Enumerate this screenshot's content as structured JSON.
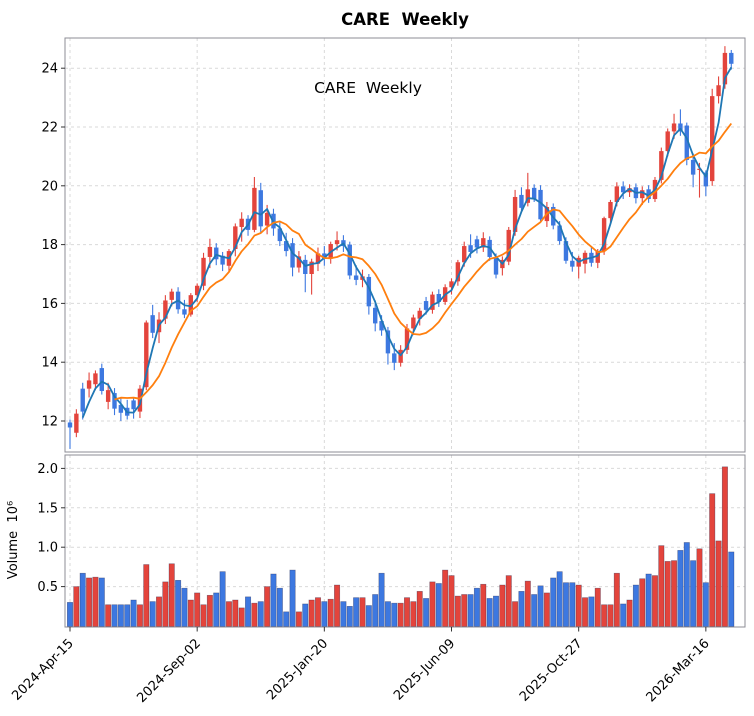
{
  "title": "CARE  Weekly",
  "annotation": "CARE  Weekly",
  "colors": {
    "up": "#e3443c",
    "down": "#3d78e0",
    "ma_fast": "#1f77b4",
    "ma_slow": "#ff7f0e",
    "grid": "#d9d9d9",
    "spine": "#8c8c96",
    "text": "#000000",
    "background": "#ffffff"
  },
  "price_axis": {
    "tick_labels": [
      "12",
      "14",
      "16",
      "18",
      "20",
      "22",
      "24"
    ],
    "tick_values": [
      12,
      14,
      16,
      18,
      20,
      22,
      24
    ],
    "ylim": [
      10.95,
      25.05
    ]
  },
  "volume_axis": {
    "label": "Volume  10⁶",
    "tick_labels": [
      "0.5",
      "1.0",
      "1.5",
      "2.0"
    ],
    "tick_values": [
      0.5,
      1.0,
      1.5,
      2.0
    ],
    "ylim": [
      0,
      2.17
    ]
  },
  "x_axis": {
    "tick_indices": [
      0,
      20,
      40,
      60,
      80,
      100
    ],
    "tick_labels": [
      "2024-Apr-15",
      "2024-Sep-02",
      "2025-Jan-20",
      "2025-Jun-09",
      "2025-Oct-27",
      "2026-Mar-16"
    ]
  },
  "chart_data": {
    "type": "candlestick",
    "panels": [
      "price",
      "volume"
    ],
    "ma_windows": {
      "fast": 3,
      "slow": 8
    },
    "volume_unit": "millions",
    "columns": [
      "date",
      "open",
      "high",
      "low",
      "close",
      "volume_millions"
    ],
    "rows": [
      [
        "2024-04-15",
        11.95,
        12.05,
        11.05,
        11.78,
        0.3
      ],
      [
        "2024-04-22",
        11.6,
        12.4,
        11.45,
        12.25,
        0.5
      ],
      [
        "2024-04-29",
        13.1,
        13.3,
        12.05,
        12.32,
        0.67
      ],
      [
        "2024-05-06",
        13.1,
        13.65,
        12.8,
        13.38,
        0.61
      ],
      [
        "2024-05-13",
        13.25,
        13.72,
        13.05,
        13.62,
        0.62
      ],
      [
        "2024-05-20",
        13.8,
        13.95,
        12.9,
        13.02,
        0.61
      ],
      [
        "2024-05-27",
        12.65,
        13.3,
        12.4,
        13.05,
        0.27
      ],
      [
        "2024-06-03",
        12.95,
        13.12,
        12.2,
        12.42,
        0.27
      ],
      [
        "2024-06-10",
        12.55,
        12.8,
        12.0,
        12.28,
        0.27
      ],
      [
        "2024-06-17",
        12.45,
        12.72,
        12.05,
        12.18,
        0.27
      ],
      [
        "2024-06-24",
        12.7,
        12.78,
        12.08,
        12.4,
        0.33
      ],
      [
        "2024-07-01",
        12.32,
        13.22,
        12.1,
        13.1,
        0.27
      ],
      [
        "2024-07-08",
        13.15,
        15.42,
        13.05,
        15.35,
        0.78
      ],
      [
        "2024-07-15",
        15.6,
        15.95,
        14.82,
        15.0,
        0.31
      ],
      [
        "2024-07-22",
        15.02,
        15.7,
        14.65,
        15.45,
        0.37
      ],
      [
        "2024-07-29",
        15.48,
        16.28,
        15.3,
        16.1,
        0.56
      ],
      [
        "2024-08-05",
        16.12,
        16.5,
        15.9,
        16.4,
        0.79
      ],
      [
        "2024-08-12",
        16.4,
        16.55,
        15.65,
        15.8,
        0.58
      ],
      [
        "2024-08-19",
        15.8,
        16.12,
        15.5,
        15.62,
        0.48
      ],
      [
        "2024-08-26",
        15.62,
        16.35,
        15.55,
        16.28,
        0.33
      ],
      [
        "2024-09-02",
        16.28,
        16.68,
        16.05,
        16.6,
        0.42
      ],
      [
        "2024-09-09",
        16.6,
        17.72,
        16.45,
        17.55,
        0.27
      ],
      [
        "2024-09-16",
        17.58,
        18.2,
        17.2,
        17.92,
        0.39
      ],
      [
        "2024-09-23",
        17.9,
        18.05,
        17.3,
        17.5,
        0.42
      ],
      [
        "2024-09-30",
        17.62,
        17.75,
        17.1,
        17.32,
        0.69
      ],
      [
        "2024-10-07",
        17.28,
        17.85,
        17.05,
        17.78,
        0.31
      ],
      [
        "2024-10-14",
        17.85,
        18.72,
        17.6,
        18.62,
        0.33
      ],
      [
        "2024-10-21",
        18.6,
        19.1,
        18.1,
        18.88,
        0.23
      ],
      [
        "2024-10-28",
        18.88,
        19.0,
        18.3,
        18.5,
        0.37
      ],
      [
        "2024-11-04",
        18.5,
        20.3,
        18.42,
        19.93,
        0.29
      ],
      [
        "2024-11-11",
        19.85,
        20.1,
        18.4,
        18.62,
        0.31
      ],
      [
        "2024-11-18",
        18.65,
        19.35,
        18.35,
        19.08,
        0.5
      ],
      [
        "2024-11-25",
        19.05,
        19.22,
        18.3,
        18.55,
        0.66
      ],
      [
        "2024-12-02",
        18.55,
        18.75,
        17.95,
        18.12,
        0.48
      ],
      [
        "2024-12-09",
        18.12,
        18.4,
        17.6,
        17.78,
        0.18
      ],
      [
        "2024-12-16",
        18.05,
        18.22,
        16.92,
        17.22,
        0.71
      ],
      [
        "2024-12-23",
        17.22,
        17.78,
        17.05,
        17.6,
        0.18
      ],
      [
        "2024-12-30",
        17.48,
        17.65,
        16.38,
        17.0,
        0.28
      ],
      [
        "2025-01-06",
        17.0,
        17.52,
        16.3,
        17.42,
        0.33
      ],
      [
        "2025-01-13",
        17.35,
        17.9,
        17.1,
        17.7,
        0.36
      ],
      [
        "2025-01-20",
        17.7,
        17.95,
        17.28,
        17.52,
        0.31
      ],
      [
        "2025-01-27",
        17.52,
        18.1,
        17.35,
        18.02,
        0.34
      ],
      [
        "2025-02-03",
        18.02,
        18.45,
        17.8,
        18.15,
        0.52
      ],
      [
        "2025-02-10",
        18.15,
        18.32,
        17.75,
        17.95,
        0.31
      ],
      [
        "2025-02-17",
        18.0,
        18.1,
        16.82,
        16.95,
        0.25
      ],
      [
        "2025-02-24",
        16.95,
        17.3,
        16.62,
        16.8,
        0.36
      ],
      [
        "2025-03-03",
        16.8,
        17.15,
        16.55,
        16.92,
        0.36
      ],
      [
        "2025-03-10",
        16.9,
        17.0,
        15.62,
        15.9,
        0.26
      ],
      [
        "2025-03-17",
        15.85,
        16.1,
        15.05,
        15.32,
        0.4
      ],
      [
        "2025-03-24",
        15.4,
        15.6,
        14.9,
        15.08,
        0.67
      ],
      [
        "2025-03-31",
        15.08,
        15.2,
        13.92,
        14.3,
        0.31
      ],
      [
        "2025-04-07",
        14.3,
        14.65,
        13.73,
        13.98,
        0.29
      ],
      [
        "2025-04-14",
        13.98,
        14.58,
        13.85,
        14.42,
        0.29
      ],
      [
        "2025-04-21",
        14.42,
        15.3,
        14.28,
        15.15,
        0.36
      ],
      [
        "2025-04-28",
        15.15,
        15.62,
        14.92,
        15.52,
        0.31
      ],
      [
        "2025-05-05",
        15.48,
        15.85,
        15.25,
        15.75,
        0.44
      ],
      [
        "2025-05-12",
        16.08,
        16.22,
        15.62,
        15.78,
        0.35
      ],
      [
        "2025-05-19",
        15.78,
        16.4,
        15.65,
        16.3,
        0.56
      ],
      [
        "2025-05-26",
        16.32,
        16.48,
        15.88,
        16.05,
        0.54
      ],
      [
        "2025-06-02",
        16.05,
        16.65,
        15.95,
        16.55,
        0.71
      ],
      [
        "2025-06-09",
        16.55,
        16.85,
        16.3,
        16.75,
        0.64
      ],
      [
        "2025-06-16",
        16.75,
        17.48,
        16.6,
        17.4,
        0.38
      ],
      [
        "2025-06-23",
        17.4,
        18.1,
        17.25,
        17.95,
        0.4
      ],
      [
        "2025-06-30",
        17.98,
        18.35,
        17.55,
        17.75,
        0.4
      ],
      [
        "2025-07-07",
        18.18,
        18.3,
        17.7,
        17.9,
        0.48
      ],
      [
        "2025-07-14",
        17.9,
        18.42,
        17.75,
        18.22,
        0.53
      ],
      [
        "2025-07-21",
        18.16,
        18.28,
        17.45,
        17.58,
        0.35
      ],
      [
        "2025-07-28",
        17.54,
        17.7,
        16.85,
        16.98,
        0.38
      ],
      [
        "2025-08-04",
        17.2,
        17.6,
        16.95,
        17.48,
        0.52
      ],
      [
        "2025-08-11",
        17.42,
        18.6,
        17.3,
        18.5,
        0.64
      ],
      [
        "2025-08-18",
        18.43,
        19.86,
        18.3,
        19.62,
        0.31
      ],
      [
        "2025-08-25",
        19.69,
        19.95,
        19.1,
        19.25,
        0.44
      ],
      [
        "2025-09-01",
        19.42,
        20.44,
        19.3,
        19.88,
        0.57
      ],
      [
        "2025-09-08",
        19.93,
        20.05,
        19.45,
        19.55,
        0.4
      ],
      [
        "2025-09-15",
        19.86,
        20.02,
        18.78,
        18.86,
        0.51
      ],
      [
        "2025-09-22",
        18.8,
        19.45,
        18.6,
        19.28,
        0.42
      ],
      [
        "2025-09-29",
        19.28,
        19.4,
        18.52,
        18.65,
        0.61
      ],
      [
        "2025-10-06",
        18.65,
        18.8,
        18.0,
        18.12,
        0.69
      ],
      [
        "2025-10-13",
        18.12,
        18.25,
        17.35,
        17.45,
        0.55
      ],
      [
        "2025-10-20",
        17.45,
        17.75,
        17.08,
        17.25,
        0.55
      ],
      [
        "2025-10-27",
        17.25,
        17.62,
        16.85,
        17.55,
        0.52
      ],
      [
        "2025-11-03",
        17.35,
        17.8,
        17.02,
        17.72,
        0.36
      ],
      [
        "2025-11-10",
        17.72,
        17.95,
        17.25,
        17.38,
        0.37
      ],
      [
        "2025-11-17",
        17.38,
        17.85,
        17.2,
        17.78,
        0.48
      ],
      [
        "2025-11-24",
        17.78,
        18.95,
        17.65,
        18.9,
        0.27
      ],
      [
        "2025-12-01",
        18.9,
        19.52,
        18.75,
        19.45,
        0.27
      ],
      [
        "2025-12-08",
        19.45,
        20.12,
        19.3,
        19.98,
        0.67
      ],
      [
        "2025-12-15",
        19.98,
        20.15,
        19.55,
        19.78,
        0.28
      ],
      [
        "2025-12-22",
        19.78,
        20.05,
        19.62,
        19.92,
        0.33
      ],
      [
        "2025-12-29",
        19.95,
        20.08,
        19.4,
        19.58,
        0.52
      ],
      [
        "2026-01-05",
        19.58,
        19.98,
        19.35,
        19.85,
        0.6
      ],
      [
        "2026-01-12",
        19.88,
        20.02,
        19.42,
        19.55,
        0.66
      ],
      [
        "2026-01-19",
        19.55,
        20.3,
        19.45,
        20.2,
        0.64
      ],
      [
        "2026-01-26",
        20.2,
        21.3,
        20.08,
        21.18,
        1.02
      ],
      [
        "2026-02-02",
        21.18,
        21.95,
        21.0,
        21.85,
        0.82
      ],
      [
        "2026-02-09",
        21.85,
        22.45,
        21.6,
        22.12,
        0.83
      ],
      [
        "2026-02-16",
        22.12,
        22.6,
        21.7,
        21.85,
        0.96
      ],
      [
        "2026-02-23",
        22.05,
        22.15,
        20.7,
        20.88,
        1.06
      ],
      [
        "2026-03-02",
        20.88,
        21.1,
        19.95,
        20.38,
        0.83
      ],
      [
        "2026-03-09",
        20.55,
        20.78,
        19.6,
        20.58,
        0.98
      ],
      [
        "2026-03-16",
        20.45,
        20.52,
        19.65,
        19.98,
        0.55
      ],
      [
        "2026-03-23",
        20.16,
        23.3,
        20.0,
        23.05,
        1.68
      ],
      [
        "2026-03-30",
        23.05,
        23.72,
        22.8,
        23.42,
        1.08
      ],
      [
        "2026-04-06",
        23.45,
        24.75,
        23.3,
        24.52,
        2.02
      ],
      [
        "2026-04-13",
        24.52,
        24.62,
        23.95,
        24.15,
        0.94
      ]
    ]
  }
}
